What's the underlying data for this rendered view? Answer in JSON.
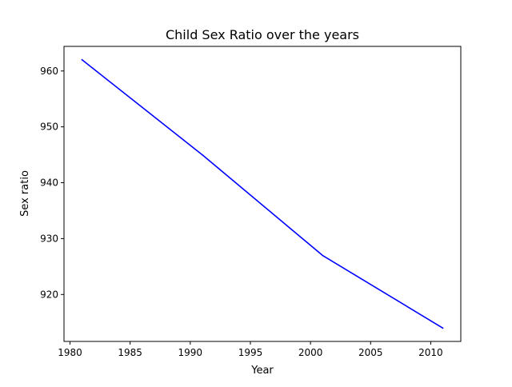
{
  "chart_data": {
    "type": "line",
    "title": "Child Sex Ratio over the years",
    "xlabel": "Year",
    "ylabel": "Sex ratio",
    "xlim": [
      1979.5,
      2012.5
    ],
    "ylim": [
      911.6,
      964.4
    ],
    "x_ticks": [
      1980,
      1985,
      1990,
      1995,
      2000,
      2005,
      2010
    ],
    "y_ticks": [
      920,
      930,
      940,
      950,
      960
    ],
    "grid": false,
    "legend": "none",
    "series": [
      {
        "color": "#0000ff",
        "x": [
          1981,
          1991,
          2001,
          2011
        ],
        "y": [
          962,
          945,
          927,
          914
        ]
      }
    ]
  }
}
